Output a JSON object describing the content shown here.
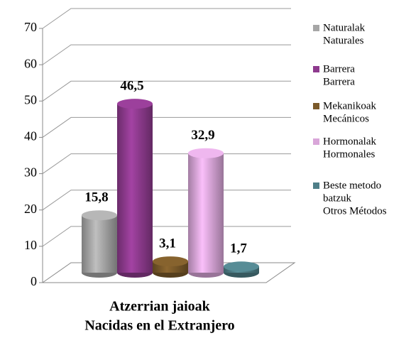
{
  "chart_data": {
    "type": "bar3d",
    "categories": [
      [
        "Atzerrian jaioak",
        "Nacidas en el Extranjero"
      ]
    ],
    "series": [
      {
        "name": [
          "Naturalak",
          "Naturales"
        ],
        "color": "#a6a6a6",
        "values": [
          15.8
        ],
        "value_labels": [
          "15,8"
        ]
      },
      {
        "name": [
          "Barrera",
          "Barrera"
        ],
        "color": "#8e3a8e",
        "values": [
          46.5
        ],
        "value_labels": [
          "46,5"
        ]
      },
      {
        "name": [
          "Mekanikoak",
          "Mecánicos"
        ],
        "color": "#7b5a2a",
        "values": [
          3.1
        ],
        "value_labels": [
          "3,1"
        ]
      },
      {
        "name": [
          "Hormonalak",
          "Hormonales"
        ],
        "color": "#d9a6d9",
        "values": [
          32.9
        ],
        "value_labels": [
          "32,9"
        ]
      },
      {
        "name": [
          "Beste metodo",
          "batzuk",
          "Otros Métodos"
        ],
        "color": "#4f7f88",
        "values": [
          1.7
        ],
        "value_labels": [
          "1,7"
        ]
      }
    ],
    "ylim": [
      0,
      70
    ],
    "yticks": [
      0,
      10,
      20,
      30,
      40,
      50,
      60,
      70
    ],
    "grid": true,
    "legend": "right"
  }
}
